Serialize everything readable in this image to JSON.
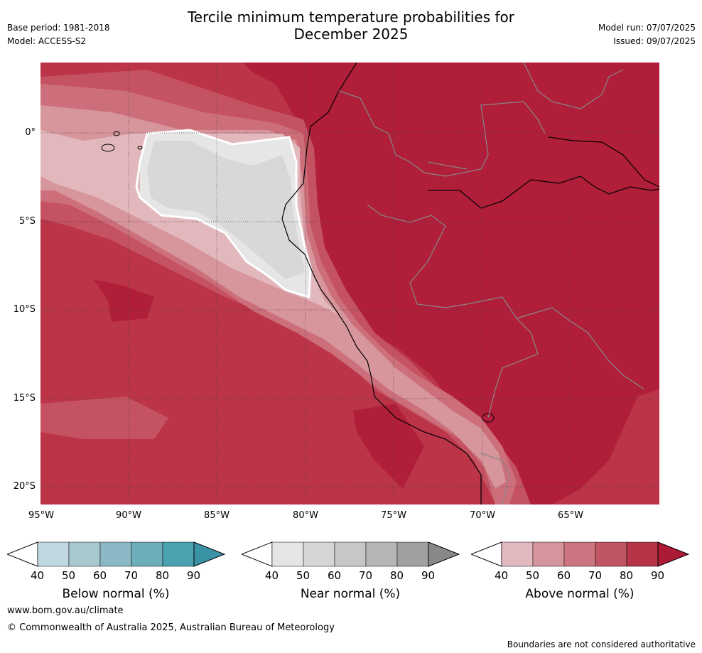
{
  "title_line1": "Tercile minimum temperature probabilities for",
  "title_line2": "December 2025",
  "base_period": "Base period: 1981-2018",
  "model": "Model: ACCESS-S2",
  "model_run": "Model run: 07/07/2025",
  "issued": "Issued: 09/07/2025",
  "lon_ticks": [
    "95°W",
    "90°W",
    "85°W",
    "80°W",
    "75°W",
    "70°W",
    "65°W"
  ],
  "lat_ticks": [
    "0°",
    "5°S",
    "10°S",
    "15°S",
    "20°S"
  ],
  "colorbars": [
    {
      "label": "Below normal (%)",
      "ticks": [
        "40",
        "50",
        "60",
        "70",
        "80",
        "90"
      ],
      "colors": [
        "#bfd7de",
        "#a8c8d0",
        "#8ab8c4",
        "#6caeba",
        "#4aa1b0",
        "#3a93a5"
      ]
    },
    {
      "label": "Near normal (%)",
      "ticks": [
        "40",
        "50",
        "60",
        "70",
        "80",
        "90"
      ],
      "colors": [
        "#e5e5e5",
        "#d6d6d6",
        "#c7c7c7",
        "#b6b6b6",
        "#a0a0a0",
        "#888888"
      ]
    },
    {
      "label": "Above normal (%)",
      "ticks": [
        "40",
        "50",
        "60",
        "70",
        "80",
        "90"
      ],
      "colors": [
        "#e3b9c0",
        "#d6959d",
        "#cc7580",
        "#c05664",
        "#b53448",
        "#ac1a36"
      ]
    }
  ],
  "website": "www.bom.gov.au/climate",
  "copyright": "© Commonwealth of Australia 2025, Australian Bureau of Meteorology",
  "disclaimer": "Boundaries are not considered authoritative",
  "colors": {
    "above_90": "#b01e3a",
    "above_80": "#bb3448",
    "above_70": "#c55262",
    "above_60": "#cd6f7a",
    "above_50": "#d7959c",
    "above_40": "#e2b8bd",
    "near_50": "#d8d8d8",
    "near_40": "#e6e6e6"
  }
}
